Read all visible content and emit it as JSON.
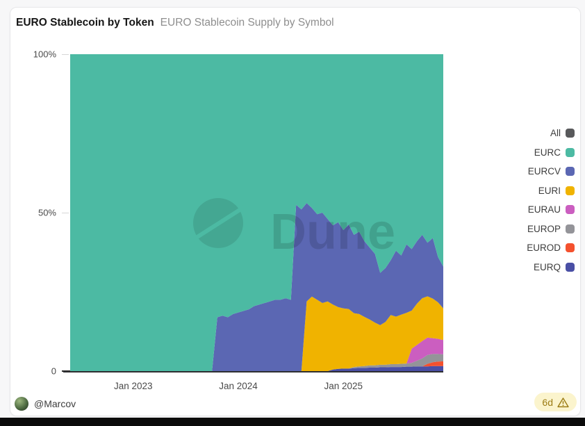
{
  "header": {
    "title": "EURO Stablecoin by Token",
    "subtitle": "EURO Stablecoin Supply by Symbol"
  },
  "watermark": {
    "text": "Dune"
  },
  "footer": {
    "username": "@Marcov",
    "age_badge": "6d"
  },
  "legend": {
    "position": "right",
    "items": [
      {
        "label": "All",
        "color": "#58595b"
      },
      {
        "label": "EURC",
        "color": "#4cbaa3"
      },
      {
        "label": "EURCV",
        "color": "#5b67b3"
      },
      {
        "label": "EURI",
        "color": "#f0b300"
      },
      {
        "label": "EURAU",
        "color": "#cb5ec0"
      },
      {
        "label": "EUROP",
        "color": "#949499"
      },
      {
        "label": "EUROD",
        "color": "#f4512e"
      },
      {
        "label": "EURQ",
        "color": "#4a4fa5"
      }
    ]
  },
  "chart_data": {
    "type": "area",
    "stacking": "percent",
    "title": "EURO Stablecoin Supply by Symbol",
    "grid": false,
    "ylim": [
      0,
      100
    ],
    "n_points": 72,
    "x_axis": {
      "unit": "decimal_year",
      "start": 2022.4,
      "step": 0.05
    },
    "x_ticks": [
      {
        "v": 2023,
        "label": "Jan 2023"
      },
      {
        "v": 2024,
        "label": "Jan 2024"
      },
      {
        "v": 2025,
        "label": "Jan 2025"
      }
    ],
    "y_ticks": [
      {
        "v": 0,
        "label": "0"
      },
      {
        "v": 50,
        "label": "50%"
      },
      {
        "v": 100,
        "label": "100%"
      }
    ],
    "series_note": "percent share of total EURO stablecoin supply; listed bottom-to-top in stack order; first_index = sample where series becomes non-zero",
    "series": [
      {
        "label": "EURQ",
        "color": "#4a4fa5",
        "first_index": 50,
        "values": [
          0.5,
          0.7,
          0.8,
          0.8,
          0.9,
          1.0,
          1.0,
          1.1,
          1.1,
          1.2,
          1.2,
          1.3,
          1.3,
          1.3,
          1.4,
          1.4,
          1.5,
          1.5,
          1.5,
          1.6,
          1.6,
          1.6
        ]
      },
      {
        "label": "EUROD",
        "color": "#f4512e",
        "first_index": 68,
        "values": [
          0.8,
          1.2,
          1.4,
          1.5
        ]
      },
      {
        "label": "EUROP",
        "color": "#949499",
        "first_index": 54,
        "values": [
          0.4,
          0.5,
          0.6,
          0.7,
          0.7,
          0.8,
          0.8,
          0.9,
          0.9,
          1.0,
          1.0,
          1.2,
          1.8,
          2.5,
          2.8,
          2.6,
          2.4,
          2.2
        ]
      },
      {
        "label": "EURAU",
        "color": "#cb5ec0",
        "first_index": 65,
        "values": [
          4.5,
          5.0,
          5.5,
          5.5,
          5.0,
          4.8,
          4.5
        ]
      },
      {
        "label": "EURI",
        "color": "#f0b300",
        "first_index": 45,
        "values": [
          22,
          23.5,
          22.5,
          21.5,
          22,
          20.5,
          19.5,
          19,
          18.8,
          17,
          16.5,
          15.5,
          14.5,
          13.5,
          12.5,
          13.5,
          15.5,
          15,
          15.5,
          16,
          12,
          13,
          13.5,
          13,
          12.5,
          11.5,
          10
        ]
      },
      {
        "label": "EURCV",
        "color": "#5b67b3",
        "first_index": 28,
        "values": [
          17,
          17.5,
          17,
          18,
          18.5,
          19,
          19.5,
          20.5,
          21,
          21.5,
          22,
          22.5,
          22.5,
          23,
          22.5,
          52.5,
          51,
          31,
          28,
          27,
          28.5,
          26,
          25,
          26.8,
          24.7,
          26.7,
          24.7,
          26,
          23.9,
          22.7,
          21.7,
          16.5,
          17,
          17.3,
          20.8,
          18.7,
          21.6,
          19.4,
          19.7,
          20,
          16.9,
          19.1,
          14.3,
          13.2
        ]
      },
      {
        "label": "EURC",
        "color": "#4cbaa3",
        "first_index": 0,
        "values": [
          100,
          100,
          100,
          100,
          100,
          100,
          100,
          100,
          100,
          100,
          100,
          100,
          100,
          100,
          100,
          100,
          100,
          100,
          100,
          100,
          100,
          100,
          100,
          100,
          100,
          100,
          100,
          100,
          83,
          82.5,
          83,
          82,
          81.5,
          81,
          80.5,
          79.5,
          79,
          78.5,
          78,
          77.5,
          77.5,
          77,
          77.5,
          47.5,
          49,
          47,
          48.5,
          50.5,
          50,
          52,
          54,
          53,
          55.5,
          53.7,
          57,
          56,
          59,
          61,
          63,
          69,
          67.5,
          65,
          62,
          63.5,
          60,
          61.5,
          59,
          57,
          59.5,
          58,
          64,
          67
        ]
      }
    ]
  }
}
